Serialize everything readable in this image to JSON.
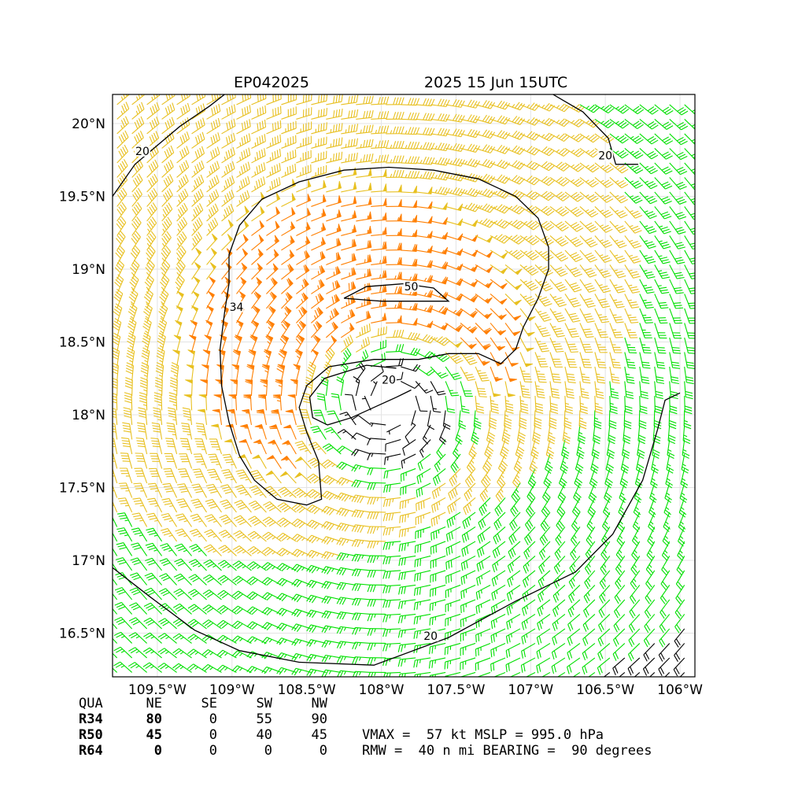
{
  "header": {
    "storm_id": "EP042025",
    "valid_time": "2025 15 Jun 15UTC"
  },
  "chart_data": {
    "type": "wind-barb-map",
    "xlim": [
      -109.8,
      -105.9
    ],
    "ylim": [
      16.2,
      20.2
    ],
    "xticks": [
      {
        "value": -109.5,
        "label": "109.5°W"
      },
      {
        "value": -109.0,
        "label": "109°W"
      },
      {
        "value": -108.5,
        "label": "108.5°W"
      },
      {
        "value": -108.0,
        "label": "108°W"
      },
      {
        "value": -107.5,
        "label": "107.5°W"
      },
      {
        "value": -107.0,
        "label": "107°W"
      },
      {
        "value": -106.5,
        "label": "106.5°W"
      },
      {
        "value": -106.0,
        "label": "106°W"
      }
    ],
    "yticks": [
      {
        "value": 16.5,
        "label": "16.5°N"
      },
      {
        "value": 17.0,
        "label": "17°N"
      },
      {
        "value": 17.5,
        "label": "17.5°N"
      },
      {
        "value": 18.0,
        "label": "18°N"
      },
      {
        "value": 18.5,
        "label": "18.5°N"
      },
      {
        "value": 19.0,
        "label": "19°N"
      },
      {
        "value": 19.5,
        "label": "19.5°N"
      },
      {
        "value": 20.0,
        "label": "20°N"
      }
    ],
    "grid": true,
    "storm_center": {
      "lon": -107.95,
      "lat": 18.08
    },
    "wind_color_classes": [
      {
        "min_kt": 0,
        "max_kt": 20,
        "color": "#000000"
      },
      {
        "min_kt": 20,
        "max_kt": 34,
        "color": "#00e000"
      },
      {
        "min_kt": 34,
        "max_kt": 50,
        "color": "#e8c020"
      },
      {
        "min_kt": 50,
        "max_kt": 64,
        "color": "#ff7f00"
      }
    ],
    "contours": [
      {
        "level_label": "20",
        "label_positions": [
          {
            "lon": -109.6,
            "lat": 19.8
          },
          {
            "lon": -106.5,
            "lat": 19.77
          },
          {
            "lon": -107.67,
            "lat": 16.47
          }
        ],
        "paths": [
          [
            [
              -109.8,
              19.5
            ],
            [
              -109.65,
              19.72
            ],
            [
              -109.5,
              19.85
            ],
            [
              -109.35,
              19.98
            ],
            [
              -109.15,
              20.12
            ],
            [
              -109.05,
              20.2
            ]
          ],
          [
            [
              -106.85,
              20.2
            ],
            [
              -106.65,
              20.08
            ],
            [
              -106.48,
              19.9
            ],
            [
              -106.43,
              19.72
            ],
            [
              -106.28,
              19.72
            ]
          ],
          [
            [
              -109.8,
              16.95
            ],
            [
              -109.55,
              16.75
            ],
            [
              -109.25,
              16.52
            ],
            [
              -108.95,
              16.38
            ],
            [
              -108.55,
              16.3
            ],
            [
              -108.05,
              16.28
            ],
            [
              -107.55,
              16.47
            ],
            [
              -107.1,
              16.72
            ],
            [
              -106.7,
              16.92
            ],
            [
              -106.45,
              17.18
            ],
            [
              -106.25,
              17.55
            ],
            [
              -106.15,
              17.9
            ],
            [
              -106.1,
              18.1
            ],
            [
              -106.0,
              18.15
            ]
          ]
        ]
      },
      {
        "level_label": "20",
        "label_positions": [
          {
            "lon": -107.95,
            "lat": 18.23
          }
        ],
        "paths": [
          [
            [
              -107.9,
              18.32
            ],
            [
              -108.1,
              18.34
            ],
            [
              -108.38,
              18.25
            ],
            [
              -108.48,
              18.12
            ],
            [
              -108.46,
              17.98
            ],
            [
              -108.36,
              17.93
            ],
            [
              -108.2,
              17.98
            ],
            [
              -108.05,
              18.05
            ],
            [
              -107.9,
              18.12
            ],
            [
              -107.8,
              18.17
            ]
          ]
        ]
      },
      {
        "level_label": "34",
        "label_positions": [
          {
            "lon": -108.97,
            "lat": 18.73
          }
        ],
        "paths": [
          [
            [
              -108.7,
              17.42
            ],
            [
              -108.5,
              17.38
            ],
            [
              -108.4,
              17.42
            ],
            [
              -108.42,
              17.68
            ],
            [
              -108.5,
              17.88
            ],
            [
              -108.55,
              18.05
            ],
            [
              -108.5,
              18.2
            ],
            [
              -108.35,
              18.33
            ],
            [
              -108.05,
              18.38
            ],
            [
              -107.75,
              18.38
            ],
            [
              -107.55,
              18.42
            ],
            [
              -107.35,
              18.42
            ],
            [
              -107.2,
              18.35
            ],
            [
              -107.1,
              18.45
            ],
            [
              -107.05,
              18.6
            ],
            [
              -106.95,
              18.8
            ],
            [
              -106.88,
              19.0
            ],
            [
              -106.88,
              19.15
            ],
            [
              -106.95,
              19.35
            ],
            [
              -107.1,
              19.5
            ],
            [
              -107.35,
              19.62
            ],
            [
              -107.65,
              19.68
            ],
            [
              -107.95,
              19.7
            ],
            [
              -108.25,
              19.68
            ],
            [
              -108.55,
              19.6
            ],
            [
              -108.8,
              19.48
            ],
            [
              -108.95,
              19.3
            ],
            [
              -109.02,
              19.1
            ],
            [
              -109.02,
              18.9
            ],
            [
              -109.05,
              18.7
            ],
            [
              -109.08,
              18.45
            ],
            [
              -109.07,
              18.2
            ],
            [
              -109.02,
              17.95
            ],
            [
              -108.95,
              17.72
            ],
            [
              -108.85,
              17.55
            ],
            [
              -108.7,
              17.42
            ]
          ]
        ]
      },
      {
        "level_label": "50",
        "label_positions": [
          {
            "lon": -107.8,
            "lat": 18.87
          }
        ],
        "paths": [
          [
            [
              -108.25,
              18.8
            ],
            [
              -108.1,
              18.88
            ],
            [
              -107.85,
              18.9
            ],
            [
              -107.65,
              18.87
            ],
            [
              -107.55,
              18.78
            ],
            [
              -107.75,
              18.78
            ],
            [
              -108.0,
              18.78
            ],
            [
              -108.25,
              18.8
            ]
          ]
        ]
      }
    ],
    "wind_radii": {
      "columns": [
        "NE",
        "SE",
        "SW",
        "NW"
      ],
      "rows": [
        {
          "name": "R34",
          "values": [
            80,
            0,
            55,
            90
          ]
        },
        {
          "name": "R50",
          "values": [
            45,
            0,
            40,
            45
          ]
        },
        {
          "name": "R64",
          "values": [
            0,
            0,
            0,
            0
          ]
        }
      ]
    }
  },
  "table": {
    "header_label": "QUA",
    "col_ne": "NE",
    "col_se": "SE",
    "col_sw": "SW",
    "col_nw": "NW",
    "r34_label": "R34",
    "r34_ne": "80",
    "r34_se": "0",
    "r34_sw": "55",
    "r34_nw": "90",
    "r50_label": "R50",
    "r50_ne": "45",
    "r50_se": "0",
    "r50_sw": "40",
    "r50_nw": "45",
    "r64_label": "R64",
    "r64_ne": "0",
    "r64_se": "0",
    "r64_sw": "0",
    "r64_nw": "0"
  },
  "summary": {
    "line1": "VMAX =  57 kt MSLP = 995.0 hPa",
    "line2": "RMW =  40 n mi BEARING =  90 degrees"
  }
}
